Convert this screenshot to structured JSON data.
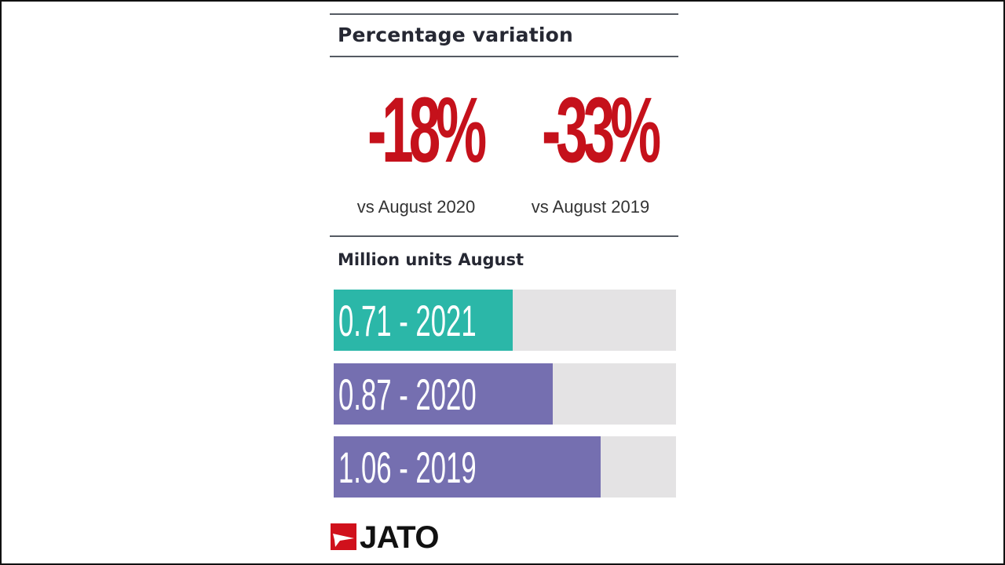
{
  "colors": {
    "accent_red": "#c5111b",
    "bar_2021": "#2bb7a8",
    "bar_prior": "#756fb0",
    "bar_track": "#e4e3e4",
    "rule": "#555a63"
  },
  "header": {
    "title": "Percentage variation"
  },
  "stats": [
    {
      "value": "-18%",
      "caption": "vs August 2020"
    },
    {
      "value": "-33%",
      "caption": "vs August 2019"
    }
  ],
  "units_section": {
    "title": "Million units August"
  },
  "chart_data": {
    "type": "bar",
    "orientation": "horizontal",
    "xlim": [
      0,
      1.36
    ],
    "categories": [
      "2021",
      "2020",
      "2019"
    ],
    "values": [
      0.71,
      0.87,
      1.06
    ],
    "labels": [
      "0.71 - 2021",
      "0.87 - 2020",
      "1.06 - 2019"
    ],
    "colors": [
      "#2bb7a8",
      "#756fb0",
      "#756fb0"
    ],
    "grid": false
  },
  "brand": {
    "logo_icon": "jato-flag-icon",
    "name": "JATO"
  }
}
